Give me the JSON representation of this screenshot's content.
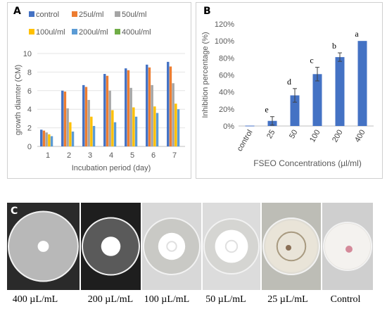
{
  "panel_a": {
    "letter": "A",
    "chart_data": {
      "type": "bar",
      "xlabel": "Incubation period (day)",
      "ylabel": "growth diamter (CM)",
      "categories": [
        "1",
        "2",
        "3",
        "4",
        "5",
        "6",
        "7"
      ],
      "ylim": [
        0,
        10
      ],
      "yticks": [
        0,
        2,
        4,
        6,
        8,
        10
      ],
      "grid": true,
      "legend": "top",
      "series": [
        {
          "name": "control",
          "color": "#4472c4",
          "values": [
            1.8,
            6.0,
            6.6,
            7.8,
            8.4,
            8.8,
            9.1
          ]
        },
        {
          "name": "25ul/ml",
          "color": "#ed7d31",
          "values": [
            1.7,
            5.9,
            6.4,
            7.6,
            8.2,
            8.5,
            8.6
          ]
        },
        {
          "name": "50ul/ml",
          "color": "#a5a5a5",
          "values": [
            1.5,
            4.1,
            5.0,
            6.0,
            6.3,
            6.6,
            6.8
          ]
        },
        {
          "name": "100ul/ml",
          "color": "#ffc000",
          "values": [
            1.3,
            2.6,
            3.2,
            3.9,
            4.2,
            4.3,
            4.6
          ]
        },
        {
          "name": "200ul/ml",
          "color": "#5b9bd5",
          "values": [
            1.1,
            1.6,
            2.2,
            2.6,
            3.2,
            3.6,
            4.0
          ]
        },
        {
          "name": "400ul/ml",
          "color": "#70ad47",
          "values": [
            0,
            0,
            0,
            0,
            0,
            0,
            0
          ]
        }
      ]
    }
  },
  "panel_b": {
    "letter": "B",
    "chart_data": {
      "type": "bar",
      "xlabel": "FSEO Concentrations (µl/ml)",
      "ylabel": "Inhibition percentage (%)",
      "categories": [
        "control",
        "25",
        "50",
        "100",
        "200",
        "400"
      ],
      "values": [
        0,
        6,
        36,
        61,
        81,
        100
      ],
      "errors": [
        0,
        5,
        8,
        8,
        5,
        0
      ],
      "letters": [
        "",
        "e",
        "d",
        "c",
        "b",
        "a"
      ],
      "ylim": [
        0,
        120
      ],
      "yticks": [
        "0%",
        "20%",
        "40%",
        "60%",
        "80%",
        "100%",
        "120%"
      ],
      "grid": false,
      "color": "#4472c4"
    }
  },
  "panel_c": {
    "letter": "C",
    "photos": [
      {
        "caption": "400 µL/mL",
        "colony": 0.16
      },
      {
        "caption": "200 µL/mL",
        "colony": 0.34
      },
      {
        "caption": "100 µL/mL",
        "colony": 0.48
      },
      {
        "caption": "50 µL/mL",
        "colony": 0.6
      },
      {
        "caption": "25 µL/mL",
        "colony": 0.92
      },
      {
        "caption": "Control",
        "colony": 0.95
      }
    ]
  }
}
